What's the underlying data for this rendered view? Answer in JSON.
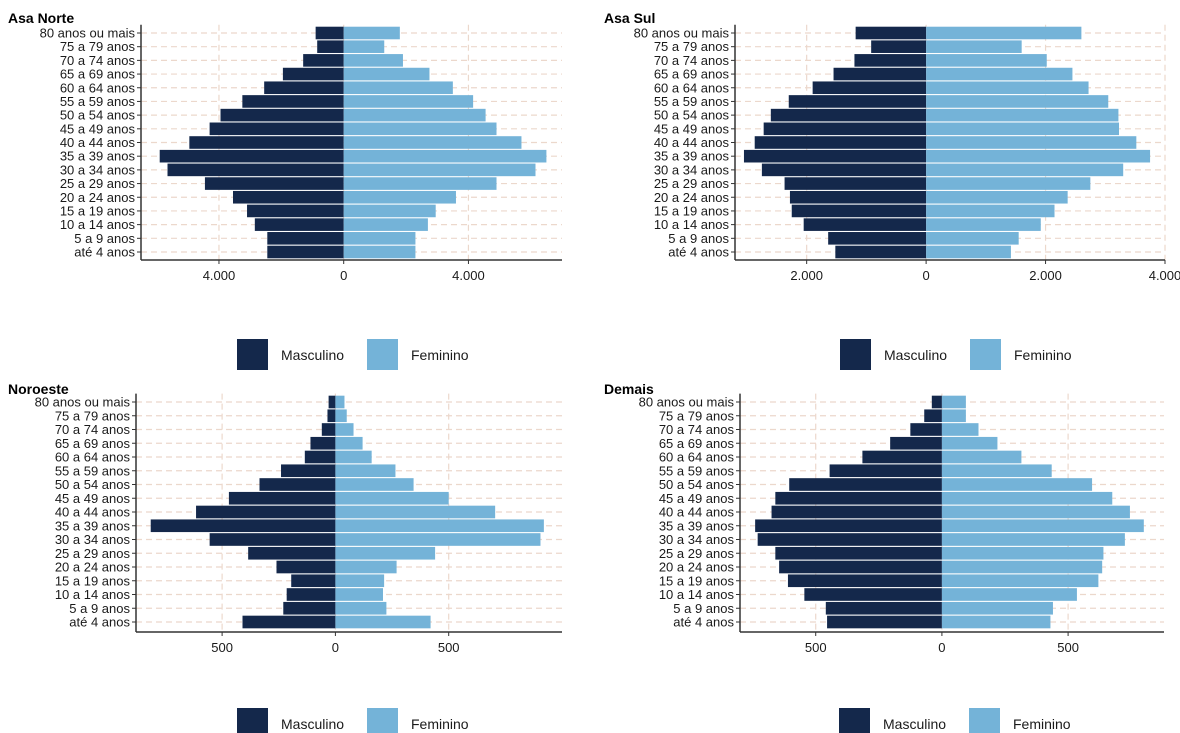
{
  "colors": {
    "Masculino": "#14284b",
    "Feminino": "#74b3d8",
    "grid": "#ecd8cc"
  },
  "chart_data": [
    {
      "type": "bar",
      "title": "Asa Norte",
      "orientation": "horizontal-pyramid",
      "categories": [
        "80 anos ou mais",
        "75 a 79 anos",
        "70 a 74 anos",
        "65 a 69 anos",
        "60 a 64 anos",
        "55 a 59 anos",
        "50 a 54 anos",
        "45 a 49 anos",
        "40 a 44 anos",
        "35 a 39 anos",
        "30 a 34 anos",
        "25 a 29 anos",
        "20 a 24 anos",
        "15 a 19 anos",
        "10 a 14 anos",
        "5 a 9 anos",
        "até 4 anos"
      ],
      "series": [
        {
          "name": "Masculino",
          "values": [
            900,
            850,
            1300,
            1950,
            2550,
            3250,
            3950,
            4300,
            4950,
            5900,
            5650,
            4450,
            3550,
            3100,
            2850,
            2450,
            2450
          ]
        },
        {
          "name": "Feminino",
          "values": [
            1800,
            1300,
            1900,
            2750,
            3500,
            4150,
            4550,
            4900,
            5700,
            6500,
            6150,
            4900,
            3600,
            2950,
            2700,
            2300,
            2300
          ]
        }
      ],
      "xlim": [
        -6500,
        7000
      ],
      "xticks": [
        -4000,
        0,
        4000
      ],
      "xtick_labels": [
        "4.000",
        "0",
        "4.000"
      ],
      "legend": [
        "Masculino",
        "Feminino"
      ],
      "legend_position": "bottom",
      "grid": true
    },
    {
      "type": "bar",
      "title": "Asa Sul",
      "orientation": "horizontal-pyramid",
      "categories": [
        "80 anos ou mais",
        "75 a 79 anos",
        "70 a 74 anos",
        "65 a 69 anos",
        "60 a 64 anos",
        "55 a 59 anos",
        "50 a 54 anos",
        "45 a 49 anos",
        "40 a 44 anos",
        "35 a 39 anos",
        "30 a 34 anos",
        "25 a 29 anos",
        "20 a 24 anos",
        "15 a 19 anos",
        "10 a 14 anos",
        "5 a 9 anos",
        "até 4 anos"
      ],
      "series": [
        {
          "name": "Masculino",
          "values": [
            1180,
            920,
            1200,
            1550,
            1900,
            2300,
            2600,
            2720,
            2870,
            3050,
            2750,
            2370,
            2280,
            2250,
            2050,
            1640,
            1520
          ]
        },
        {
          "name": "Feminino",
          "values": [
            2600,
            1600,
            2020,
            2450,
            2720,
            3050,
            3220,
            3230,
            3520,
            3750,
            3300,
            2750,
            2370,
            2150,
            1920,
            1550,
            1420
          ]
        }
      ],
      "xlim": [
        -3200,
        4000
      ],
      "xticks": [
        -2000,
        0,
        2000,
        4000
      ],
      "xtick_labels": [
        "2.000",
        "0",
        "2.000",
        "4.000"
      ],
      "legend": [
        "Masculino",
        "Feminino"
      ],
      "legend_position": "bottom",
      "grid": true
    },
    {
      "type": "bar",
      "title": "Noroeste",
      "orientation": "horizontal-pyramid",
      "categories": [
        "80 anos ou mais",
        "75 a 79 anos",
        "70 a 74 anos",
        "65 a 69 anos",
        "60 a 64 anos",
        "55 a 59 anos",
        "50 a 54 anos",
        "45 a 49 anos",
        "40 a 44 anos",
        "35 a 39 anos",
        "30 a 34 anos",
        "25 a 29 anos",
        "20 a 24 anos",
        "15 a 19 anos",
        "10 a 14 anos",
        "5 a 9 anos",
        "até 4 anos"
      ],
      "series": [
        {
          "name": "Masculino",
          "values": [
            30,
            35,
            60,
            110,
            135,
            240,
            335,
            470,
            615,
            815,
            555,
            385,
            260,
            195,
            215,
            230,
            410
          ]
        },
        {
          "name": "Feminino",
          "values": [
            40,
            50,
            80,
            120,
            160,
            265,
            345,
            500,
            705,
            920,
            905,
            440,
            270,
            215,
            210,
            225,
            420
          ]
        }
      ],
      "xlim": [
        -880,
        1000
      ],
      "xticks": [
        -500,
        0,
        500
      ],
      "xtick_labels": [
        "500",
        "0",
        "500"
      ],
      "legend": [
        "Masculino",
        "Feminino"
      ],
      "legend_position": "bottom",
      "grid": true
    },
    {
      "type": "bar",
      "title": "Demais",
      "orientation": "horizontal-pyramid",
      "categories": [
        "80 anos ou mais",
        "75 a 79 anos",
        "70 a 74 anos",
        "65 a 69 anos",
        "60 a 64 anos",
        "55 a 59 anos",
        "50 a 54 anos",
        "45 a 49 anos",
        "40 a 44 anos",
        "35 a 39 anos",
        "30 a 34 anos",
        "25 a 29 anos",
        "20 a 24 anos",
        "15 a 19 anos",
        "10 a 14 anos",
        "5 a 9 anos",
        "até 4 anos"
      ],
      "series": [
        {
          "name": "Masculino",
          "values": [
            40,
            70,
            125,
            205,
            315,
            445,
            605,
            660,
            675,
            740,
            730,
            660,
            645,
            610,
            545,
            460,
            455
          ]
        },
        {
          "name": "Feminino",
          "values": [
            95,
            95,
            145,
            220,
            315,
            435,
            595,
            675,
            745,
            800,
            725,
            640,
            635,
            620,
            535,
            440,
            430
          ]
        }
      ],
      "xlim": [
        -800,
        880
      ],
      "xticks": [
        -500,
        0,
        500
      ],
      "xtick_labels": [
        "500",
        "0",
        "500"
      ],
      "legend": [
        "Masculino",
        "Feminino"
      ],
      "legend_position": "bottom",
      "grid": true
    }
  ]
}
